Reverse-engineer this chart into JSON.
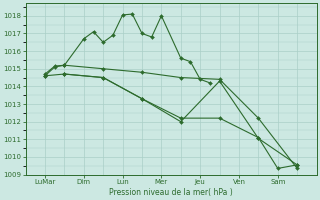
{
  "background_color": "#cce8e2",
  "grid_color": "#aacfc7",
  "line_color": "#2d6b2d",
  "ylabel": "Pression niveau de la mer( hPa )",
  "ylim": [
    1009,
    1018.7
  ],
  "yticks": [
    1009,
    1010,
    1011,
    1012,
    1013,
    1014,
    1015,
    1016,
    1017,
    1018
  ],
  "x_tick_labels": [
    "LuMar",
    "Dim",
    "Lun",
    "Mer",
    "Jeu",
    "Ven",
    "Sam"
  ],
  "x_tick_positions": [
    0,
    2,
    4,
    6,
    8,
    10,
    12
  ],
  "xlim": [
    -0.5,
    13.5
  ],
  "series1_x": [
    0,
    0.5,
    1,
    2,
    2.5,
    3,
    3.5,
    4,
    4.5,
    5,
    5.5,
    6,
    7,
    7.5,
    8,
    8.5
  ],
  "series1_y": [
    1014.7,
    1015.15,
    1015.2,
    1016.7,
    1017.1,
    1016.5,
    1016.9,
    1018.05,
    1018.1,
    1017.0,
    1016.8,
    1018.0,
    1015.6,
    1015.4,
    1014.4,
    1014.2
  ],
  "series2_x": [
    0,
    0.5,
    1,
    3,
    5,
    7,
    9,
    11,
    13
  ],
  "series2_y": [
    1014.6,
    1015.1,
    1015.2,
    1015.0,
    1014.8,
    1014.5,
    1014.4,
    1012.2,
    1009.35
  ],
  "series3_x": [
    0,
    1,
    3,
    5,
    7,
    9,
    11,
    13
  ],
  "series3_y": [
    1014.6,
    1014.7,
    1014.5,
    1013.3,
    1012.0,
    1014.3,
    1011.05,
    1009.55
  ],
  "series4_x": [
    1,
    3,
    5,
    7,
    9,
    11,
    12,
    13
  ],
  "series4_y": [
    1014.7,
    1014.5,
    1013.3,
    1012.2,
    1012.2,
    1011.1,
    1009.35,
    1009.55
  ]
}
